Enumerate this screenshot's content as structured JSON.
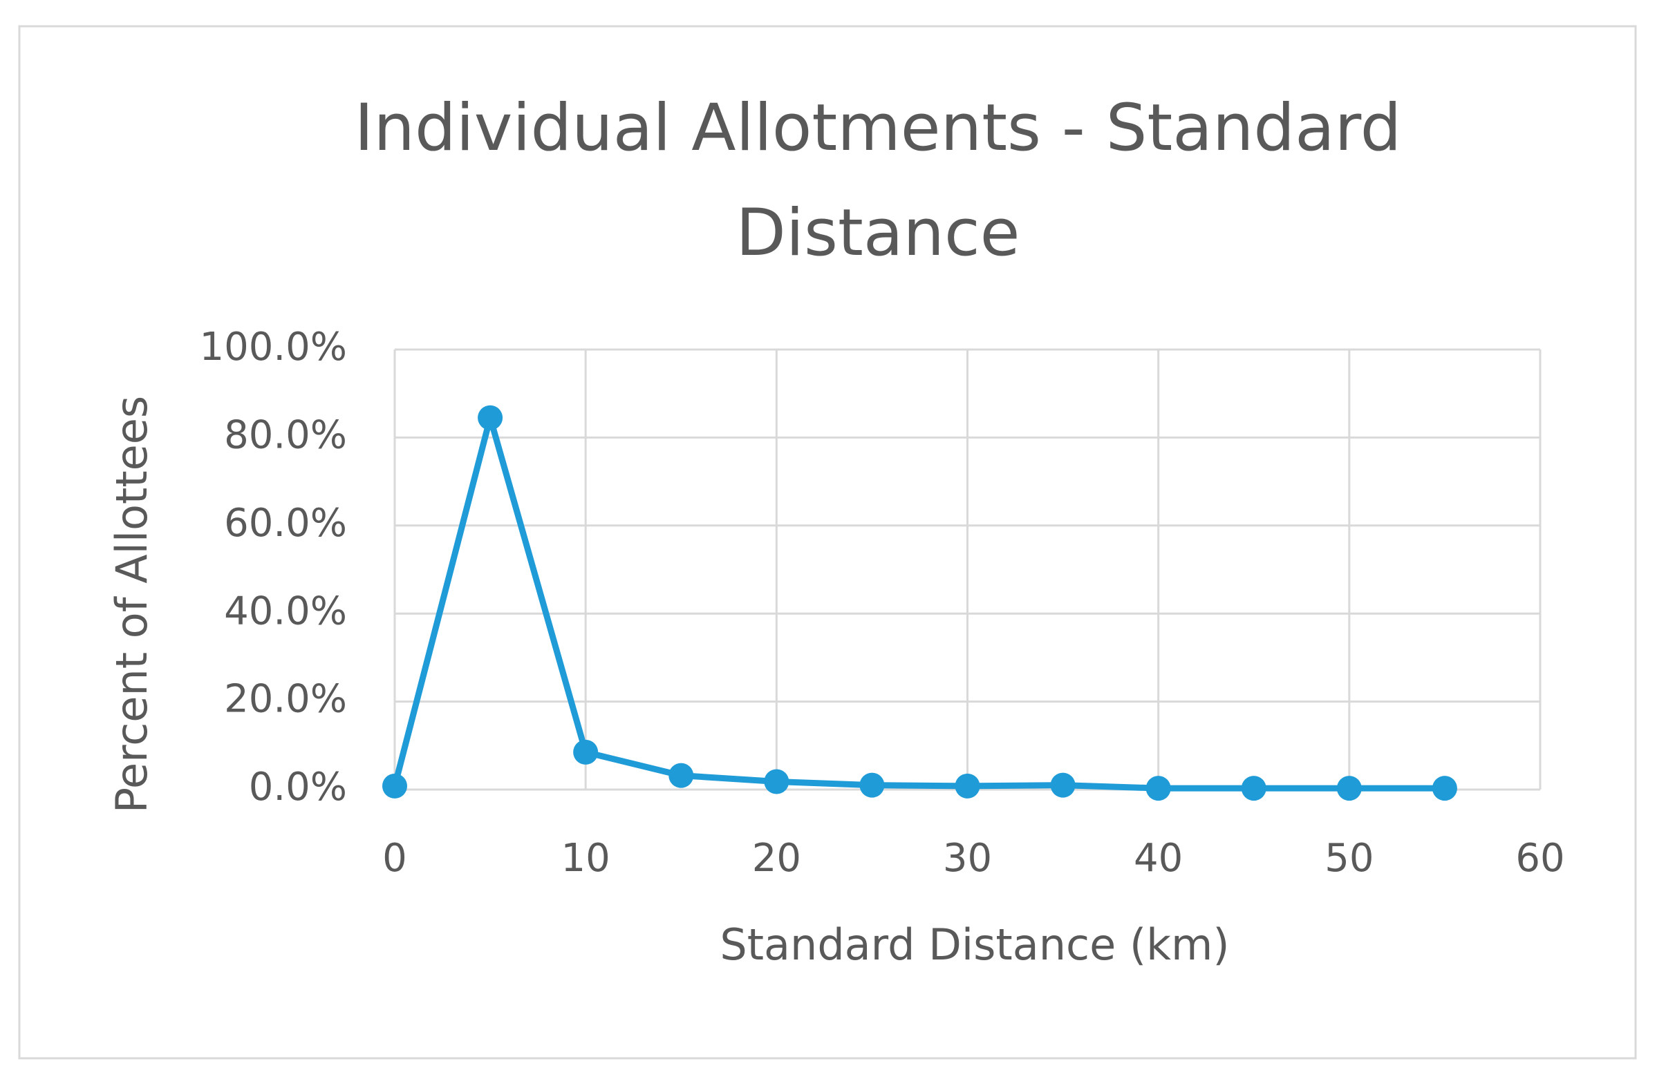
{
  "chart_data": {
    "type": "line",
    "title": "Individual Allotments - Standard Distance",
    "x_label": "Standard Distance (km)",
    "y_label": "Percent of Allottees",
    "x": [
      0,
      5,
      10,
      15,
      20,
      25,
      30,
      35,
      40,
      45,
      50,
      55
    ],
    "values": [
      0.8,
      84.5,
      8.5,
      3.2,
      1.8,
      1.0,
      0.8,
      1.0,
      0.3,
      0.3,
      0.3,
      0.3
    ],
    "color": "#1f9bd7",
    "xlim": [
      0,
      60
    ],
    "xticks": [
      0,
      10,
      20,
      30,
      40,
      50,
      60
    ],
    "ylim": [
      0,
      100
    ],
    "yticks": [
      {
        "value": 0,
        "label": "0.0%"
      },
      {
        "value": 20,
        "label": "20.0%"
      },
      {
        "value": 40,
        "label": "40.0%"
      },
      {
        "value": 60,
        "label": "60.0%"
      },
      {
        "value": 80,
        "label": "80.0%"
      },
      {
        "value": 100,
        "label": "100.0%"
      }
    ],
    "grid": true
  }
}
